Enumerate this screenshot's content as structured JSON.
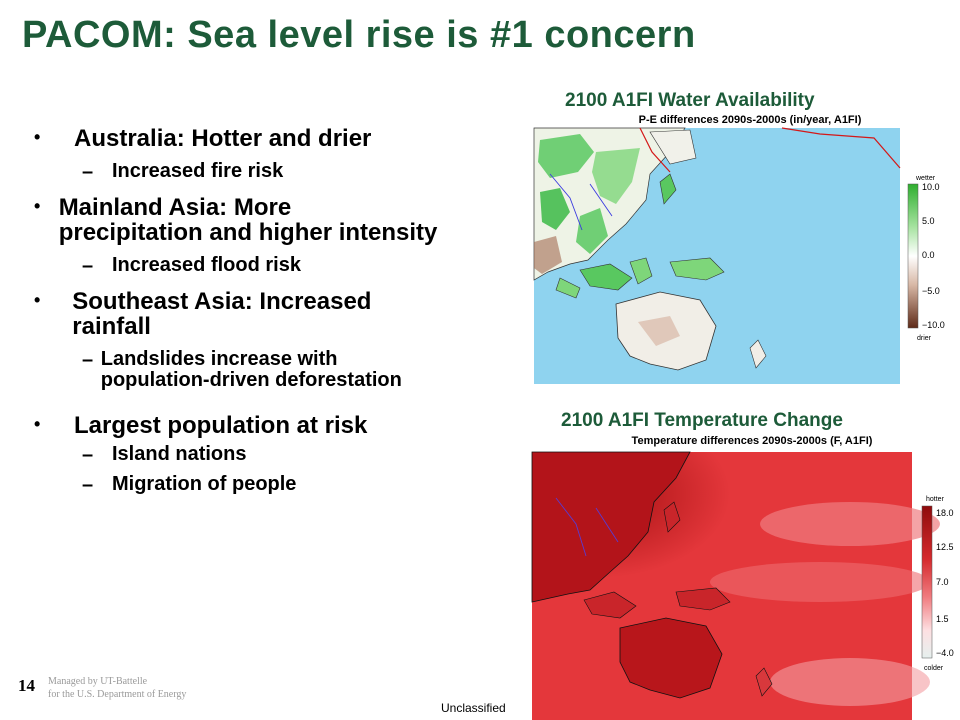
{
  "slide": {
    "title": "PACOM: Sea level rise is #1 concern",
    "bullets": [
      {
        "text": "Australia: Hotter and drier",
        "sub": [
          "Increased fire risk"
        ]
      },
      {
        "text": "Mainland Asia: More precipitation and higher intensity",
        "sub": [
          "Increased flood risk"
        ]
      },
      {
        "text": "Southeast Asia: Increased rainfall",
        "sub": [
          "Landslides increase with population-driven deforestation"
        ]
      },
      {
        "text": "Largest population at risk",
        "sub": [
          "Island nations",
          "Migration of people"
        ]
      }
    ]
  },
  "maps": {
    "water": {
      "caption": "2100 A1FI Water Availability",
      "subtitle": "P-E differences 2090s-2000s (in/year, A1FI)",
      "legend_top": "wetter",
      "legend_bottom": "drier",
      "ticks": [
        "10.0",
        "5.0",
        "0.0",
        "−5.0",
        "−10.0"
      ],
      "colors": {
        "ocean": "#8fd3ef",
        "land": "#eef3e6",
        "wet": "#59c860",
        "dry": "#8a4a33"
      }
    },
    "temperature": {
      "caption": "2100 A1FI Temperature Change",
      "subtitle": "Temperature differences 2090s-2000s (F, A1FI)",
      "legend_top": "hotter",
      "legend_bottom": "colder",
      "ticks": [
        "18.0",
        "12.5",
        "7.0",
        "1.5",
        "−4.0"
      ],
      "colors": {
        "base": "#e4373b",
        "hot": "#8f0a0c",
        "cool": "#f5b8ba"
      }
    }
  },
  "footer": {
    "page_number": "14",
    "line1": "Managed by UT-Battelle",
    "line2": "for the U.S. Department of Energy",
    "classification": "Unclassified"
  }
}
